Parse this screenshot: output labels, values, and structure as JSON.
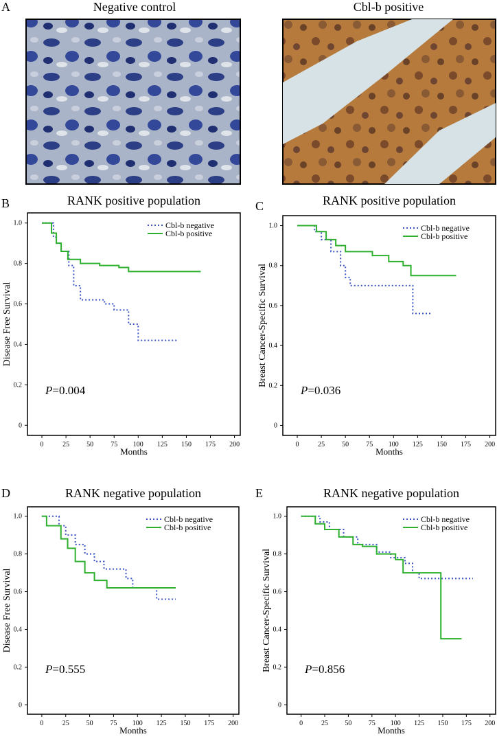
{
  "figure": {
    "panel": "A",
    "images": [
      {
        "title": "Negative control"
      },
      {
        "title": "Cbl-b positive"
      }
    ]
  },
  "chart_data": [
    {
      "type": "line",
      "panel": "B",
      "title": "RANK positive population",
      "xlabel": "Months",
      "ylabel": "Disease Free Survival",
      "annotation": {
        "italic": "P",
        "text": "=0.004"
      },
      "legend": "upper right",
      "xlim": [
        -15,
        206
      ],
      "xticks": [
        0,
        25,
        50,
        75,
        100,
        125,
        150,
        175,
        200
      ],
      "ylim": [
        -0.05,
        1.05
      ],
      "yticks": [
        0,
        0.2,
        0.4,
        0.6,
        0.8,
        {
          "value": 1,
          "label": "1.0"
        }
      ],
      "series": [
        {
          "name": "Cbl-b negative",
          "color": "#3a52c4",
          "x": [
            0,
            12,
            15,
            20,
            28,
            33,
            40,
            65,
            75,
            90,
            100,
            140
          ],
          "values": [
            1,
            0.93,
            0.9,
            0.86,
            0.79,
            0.69,
            0.62,
            0.6,
            0.57,
            0.5,
            0.42,
            0.42
          ]
        },
        {
          "name": "Cbl-b positive",
          "color": "#2db02d",
          "x": [
            0,
            10,
            15,
            20,
            27,
            40,
            60,
            80,
            90,
            165
          ],
          "values": [
            1,
            0.95,
            0.9,
            0.86,
            0.82,
            0.8,
            0.79,
            0.78,
            0.76,
            0.76
          ]
        }
      ]
    },
    {
      "type": "line",
      "panel": "C",
      "title": "RANK positive population",
      "xlabel": "Months",
      "ylabel": "Breast Cancer-Specific Survival",
      "annotation": {
        "italic": "P",
        "text": "=0.036"
      },
      "legend": "upper right",
      "xlim": [
        -15,
        206
      ],
      "xticks": [
        0,
        25,
        50,
        75,
        100,
        125,
        150,
        175,
        200
      ],
      "ylim": [
        -0.05,
        1.05
      ],
      "yticks": [
        0,
        0.2,
        0.4,
        0.6,
        0.8,
        {
          "value": 1,
          "label": "1.0"
        }
      ],
      "series": [
        {
          "name": "Cbl-b negative",
          "color": "#3a52c4",
          "x": [
            0,
            18,
            25,
            35,
            45,
            50,
            55,
            120,
            140
          ],
          "values": [
            1,
            0.97,
            0.93,
            0.87,
            0.8,
            0.74,
            0.7,
            0.56,
            0.56
          ]
        },
        {
          "name": "Cbl-b positive",
          "color": "#2db02d",
          "x": [
            0,
            20,
            30,
            40,
            50,
            78,
            95,
            110,
            118,
            165
          ],
          "values": [
            1,
            0.97,
            0.93,
            0.9,
            0.87,
            0.85,
            0.82,
            0.8,
            0.75,
            0.75
          ]
        }
      ]
    },
    {
      "type": "line",
      "panel": "D",
      "title": "RANK negative population",
      "xlabel": "Months",
      "ylabel": "Disease Free Survival",
      "annotation": {
        "italic": "P",
        "text": "=0.555"
      },
      "legend": "upper right",
      "xlim": [
        -15,
        206
      ],
      "xticks": [
        0,
        25,
        50,
        75,
        100,
        125,
        150,
        175,
        200
      ],
      "ylim": [
        -0.05,
        1.05
      ],
      "yticks": [
        0,
        0.2,
        0.4,
        0.6,
        0.8,
        {
          "value": 1,
          "label": "1.0"
        }
      ],
      "series": [
        {
          "name": "Cbl-b negative",
          "color": "#3a52c4",
          "x": [
            0,
            18,
            25,
            35,
            45,
            55,
            65,
            88,
            95,
            120,
            140
          ],
          "values": [
            1,
            0.95,
            0.9,
            0.85,
            0.8,
            0.76,
            0.72,
            0.67,
            0.62,
            0.56,
            0.56
          ]
        },
        {
          "name": "Cbl-b positive",
          "color": "#2db02d",
          "x": [
            0,
            5,
            20,
            27,
            35,
            45,
            55,
            68,
            140
          ],
          "values": [
            1,
            0.95,
            0.88,
            0.83,
            0.76,
            0.7,
            0.66,
            0.62,
            0.62
          ]
        }
      ]
    },
    {
      "type": "line",
      "panel": "E",
      "title": "RANK negative population",
      "xlabel": "Months",
      "ylabel": "Breast Cancer-Specific Survival",
      "annotation": {
        "italic": "P",
        "text": "=0.856"
      },
      "legend": "upper right",
      "xlim": [
        -15,
        206
      ],
      "xticks": [
        0,
        25,
        50,
        75,
        100,
        125,
        150,
        175,
        200
      ],
      "ylim": [
        -0.05,
        1.05
      ],
      "yticks": [
        0,
        0.2,
        0.4,
        0.6,
        0.8,
        {
          "value": 1,
          "label": "1.0"
        }
      ],
      "series": [
        {
          "name": "Cbl-b negative",
          "color": "#3a52c4",
          "x": [
            0,
            20,
            30,
            45,
            60,
            80,
            95,
            110,
            118,
            125,
            182
          ],
          "values": [
            1,
            0.97,
            0.93,
            0.89,
            0.85,
            0.81,
            0.78,
            0.75,
            0.7,
            0.67,
            0.67
          ]
        },
        {
          "name": "Cbl-b positive",
          "color": "#2db02d",
          "x": [
            0,
            15,
            25,
            40,
            55,
            65,
            80,
            100,
            108,
            148,
            170
          ],
          "values": [
            1,
            0.96,
            0.93,
            0.89,
            0.85,
            0.84,
            0.8,
            0.77,
            0.7,
            0.35,
            0.35
          ]
        }
      ]
    }
  ]
}
